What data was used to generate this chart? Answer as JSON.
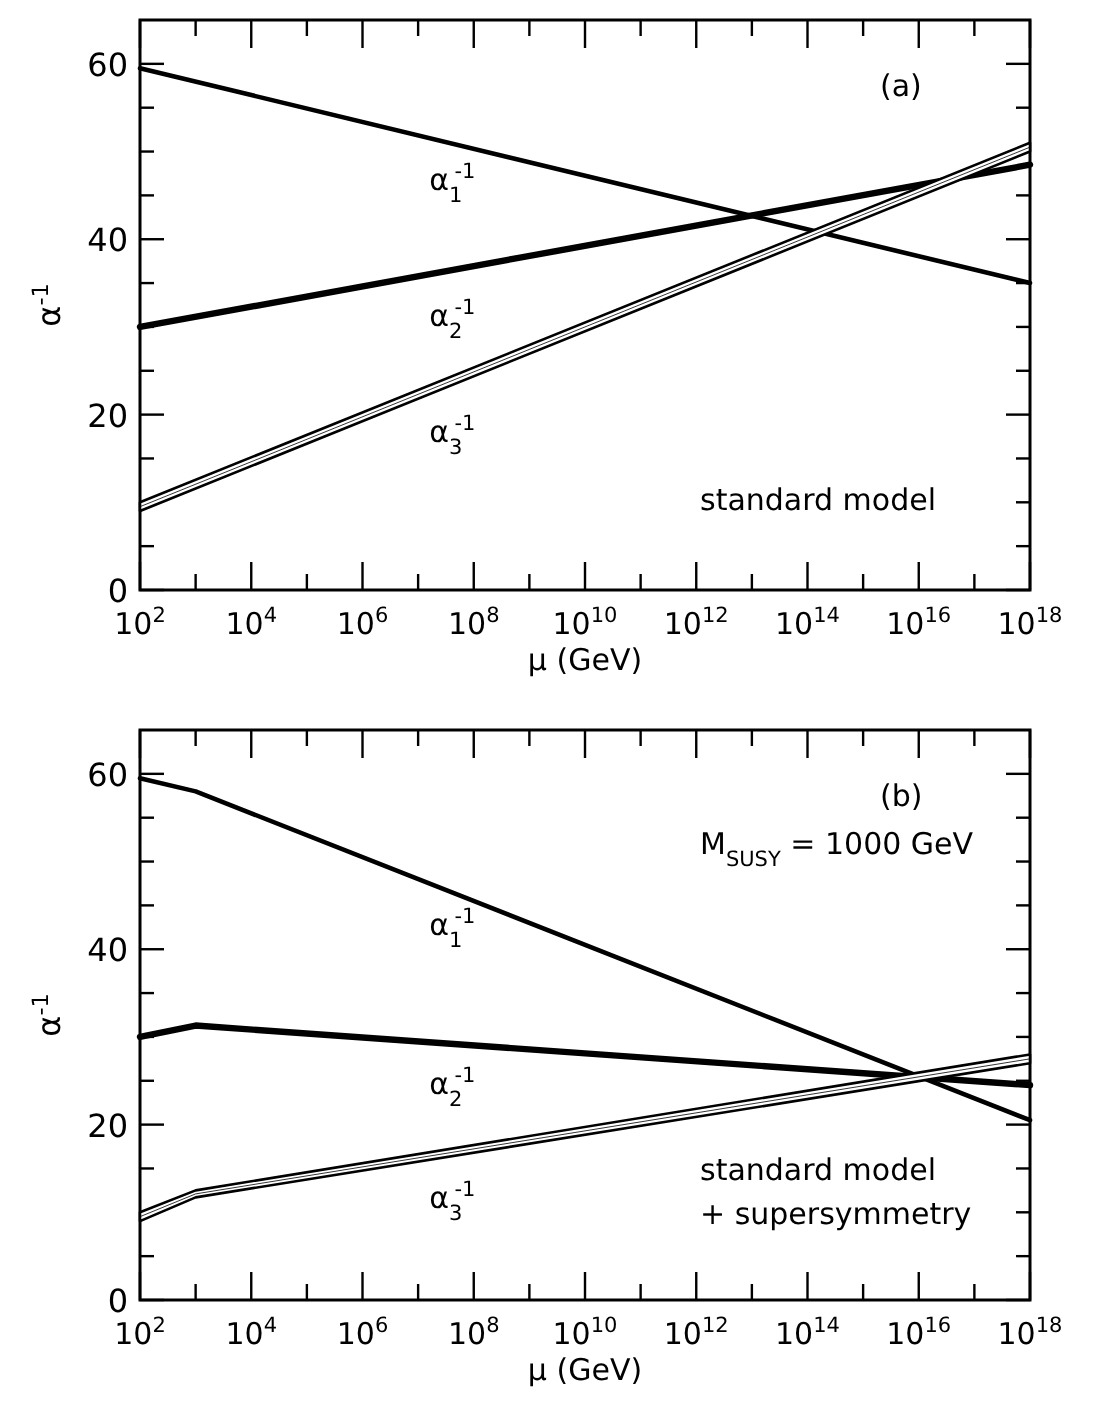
{
  "chart_data": [
    {
      "type": "line",
      "xlabel": "μ (GeV)",
      "ylabel": "α$^{-1}$",
      "log": "x",
      "grid": false,
      "x": [
        100,
        1e+18
      ],
      "xlim": [
        100,
        1e+18
      ],
      "xticks": [
        {
          "value": 100,
          "label": "10$^{2}$"
        },
        {
          "value": 1000,
          "label": null
        },
        {
          "value": 10000.0,
          "label": "10$^{4}$"
        },
        {
          "value": 100000.0,
          "label": null
        },
        {
          "value": 1000000.0,
          "label": "10$^{6}$"
        },
        {
          "value": 10000000.0,
          "label": null
        },
        {
          "value": 100000000.0,
          "label": "10$^{8}$"
        },
        {
          "value": 1000000000.0,
          "label": null
        },
        {
          "value": 10000000000.0,
          "label": "10$^{10}$"
        },
        {
          "value": 100000000000.0,
          "label": null
        },
        {
          "value": 1000000000000.0,
          "label": "10$^{12}$"
        },
        {
          "value": 10000000000000.0,
          "label": null
        },
        {
          "value": 100000000000000.0,
          "label": "10$^{14}$"
        },
        {
          "value": 1000000000000000.0,
          "label": null
        },
        {
          "value": 1e+16,
          "label": "10$^{16}$"
        },
        {
          "value": 1e+17,
          "label": null
        },
        {
          "value": 1e+18,
          "label": "10$^{18}$"
        }
      ],
      "ylim": [
        0,
        65
      ],
      "yticks": [
        0,
        {
          "value": 5,
          "label": null
        },
        {
          "value": 10,
          "label": null
        },
        {
          "value": 15,
          "label": null
        },
        20,
        {
          "value": 25,
          "label": null
        },
        {
          "value": 30,
          "label": null
        },
        {
          "value": 35,
          "label": null
        },
        40,
        {
          "value": 45,
          "label": null
        },
        {
          "value": 50,
          "label": null
        },
        {
          "value": 55,
          "label": null
        },
        60
      ],
      "series": [
        {
          "name": "α$_{1}$$^{-1}$",
          "color": "#000000",
          "values": [
            59.5,
            35
          ]
        },
        {
          "name": "α$_{2}$$^{-1}$",
          "color": "#000000",
          "values": [
            30,
            48.5
          ]
        },
        {
          "name": "α$_{3}$$^{-1}$",
          "color": "#000000",
          "values": [
            9.5,
            50.5
          ],
          "lower": [
            9,
            50
          ],
          "upper": [
            10,
            51
          ]
        }
      ],
      "annotations": [
        "(a)",
        "standard model"
      ]
    },
    {
      "type": "line",
      "xlabel": "μ (GeV)",
      "ylabel": "α$^{-1}$",
      "log": "x",
      "grid": false,
      "x": [
        100,
        1000,
        1e+18
      ],
      "xlim": [
        100,
        1e+18
      ],
      "xticks": [
        {
          "value": 100,
          "label": "10$^{2}$"
        },
        {
          "value": 1000,
          "label": null
        },
        {
          "value": 10000.0,
          "label": "10$^{4}$"
        },
        {
          "value": 100000.0,
          "label": null
        },
        {
          "value": 1000000.0,
          "label": "10$^{6}$"
        },
        {
          "value": 10000000.0,
          "label": null
        },
        {
          "value": 100000000.0,
          "label": "10$^{8}$"
        },
        {
          "value": 1000000000.0,
          "label": null
        },
        {
          "value": 10000000000.0,
          "label": "10$^{10}$"
        },
        {
          "value": 100000000000.0,
          "label": null
        },
        {
          "value": 1000000000000.0,
          "label": "10$^{12}$"
        },
        {
          "value": 10000000000000.0,
          "label": null
        },
        {
          "value": 100000000000000.0,
          "label": "10$^{14}$"
        },
        {
          "value": 1000000000000000.0,
          "label": null
        },
        {
          "value": 1e+16,
          "label": "10$^{16}$"
        },
        {
          "value": 1e+17,
          "label": null
        },
        {
          "value": 1e+18,
          "label": "10$^{18}$"
        }
      ],
      "ylim": [
        0,
        65
      ],
      "yticks": [
        0,
        {
          "value": 5,
          "label": null
        },
        {
          "value": 10,
          "label": null
        },
        {
          "value": 15,
          "label": null
        },
        20,
        {
          "value": 25,
          "label": null
        },
        {
          "value": 30,
          "label": null
        },
        {
          "value": 35,
          "label": null
        },
        40,
        {
          "value": 45,
          "label": null
        },
        {
          "value": 50,
          "label": null
        },
        {
          "value": 55,
          "label": null
        },
        60
      ],
      "series": [
        {
          "name": "α$_{1}$$^{-1}$",
          "color": "#000000",
          "values": [
            59.5,
            58,
            20.5
          ]
        },
        {
          "name": "α$_{2}$$^{-1}$",
          "color": "#000000",
          "values": [
            30,
            31.3,
            24.5
          ]
        },
        {
          "name": "α$_{3}$$^{-1}$",
          "color": "#000000",
          "values": [
            9.5,
            12.1,
            27.5
          ],
          "lower": [
            9,
            11.7,
            27
          ],
          "upper": [
            10,
            12.5,
            28
          ]
        }
      ],
      "annotations": [
        "(b)",
        "M$_{SUSY}$ = 1000 GeV",
        "standard model\n+ supersymmetry"
      ]
    }
  ]
}
